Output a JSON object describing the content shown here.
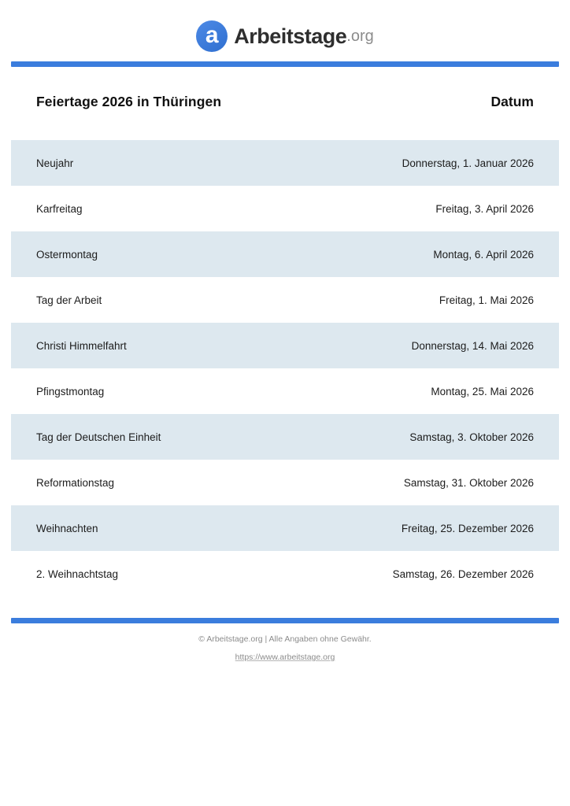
{
  "header": {
    "logo": {
      "icon_letter": "a",
      "brand": "Arbeitstage",
      "tld": ".org"
    }
  },
  "title_bar": {
    "title": "Feiertage 2026 in Thüringen",
    "date_column_label": "Datum"
  },
  "table": {
    "rows": [
      {
        "name": "Neujahr",
        "date": "Donnerstag, 1. Januar 2026"
      },
      {
        "name": "Karfreitag",
        "date": "Freitag, 3. April 2026"
      },
      {
        "name": "Ostermontag",
        "date": "Montag, 6. April 2026"
      },
      {
        "name": "Tag der Arbeit",
        "date": "Freitag, 1. Mai 2026"
      },
      {
        "name": "Christi Himmelfahrt",
        "date": "Donnerstag, 14. Mai 2026"
      },
      {
        "name": "Pfingstmontag",
        "date": "Montag, 25. Mai 2026"
      },
      {
        "name": "Tag der Deutschen Einheit",
        "date": "Samstag, 3. Oktober 2026"
      },
      {
        "name": "Reformationstag",
        "date": "Samstag, 31. Oktober 2026"
      },
      {
        "name": "Weihnachten",
        "date": "Freitag, 25. Dezember 2026"
      },
      {
        "name": "2. Weihnachtstag",
        "date": "Samstag, 26. Dezember 2026"
      }
    ]
  },
  "footer": {
    "copyright": "© Arbeitstage.org | Alle Angaben ohne Gewähr.",
    "url": "https://www.arbeitstage.org"
  },
  "colors": {
    "accent_blue": "#3b7ddd",
    "row_highlight": "#dde8ef"
  }
}
